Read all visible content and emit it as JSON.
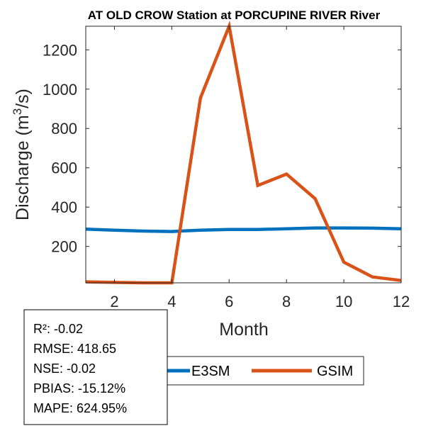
{
  "chart_data": {
    "type": "line",
    "title": "AT OLD CROW  Station at  PORCUPINE RIVER  River",
    "xlabel": "Month",
    "ylabel_prefix": "Discharge (m",
    "ylabel_sup": "3",
    "ylabel_suffix": "/s)",
    "xlim": [
      1,
      12
    ],
    "ylim": [
      15,
      1320
    ],
    "xticks": [
      2,
      4,
      6,
      8,
      10,
      12
    ],
    "yticks": [
      200,
      400,
      600,
      800,
      1000,
      1200
    ],
    "x": [
      1,
      2,
      3,
      4,
      5,
      6,
      7,
      8,
      9,
      10,
      11,
      12
    ],
    "series": [
      {
        "name": "E3SM",
        "color": "#0072BD",
        "values": [
          288,
          283,
          278,
          276,
          283,
          286,
          286,
          290,
          294,
          294,
          293,
          290
        ]
      },
      {
        "name": "GSIM",
        "color": "#D95319",
        "values": [
          20,
          17,
          15,
          15,
          955,
          1320,
          510,
          568,
          443,
          120,
          45,
          27
        ]
      }
    ],
    "stats": [
      "R²: -0.02",
      "RMSE: 418.65",
      "NSE: -0.02",
      "PBIAS: -15.12%",
      "MAPE: 624.95%"
    ]
  }
}
